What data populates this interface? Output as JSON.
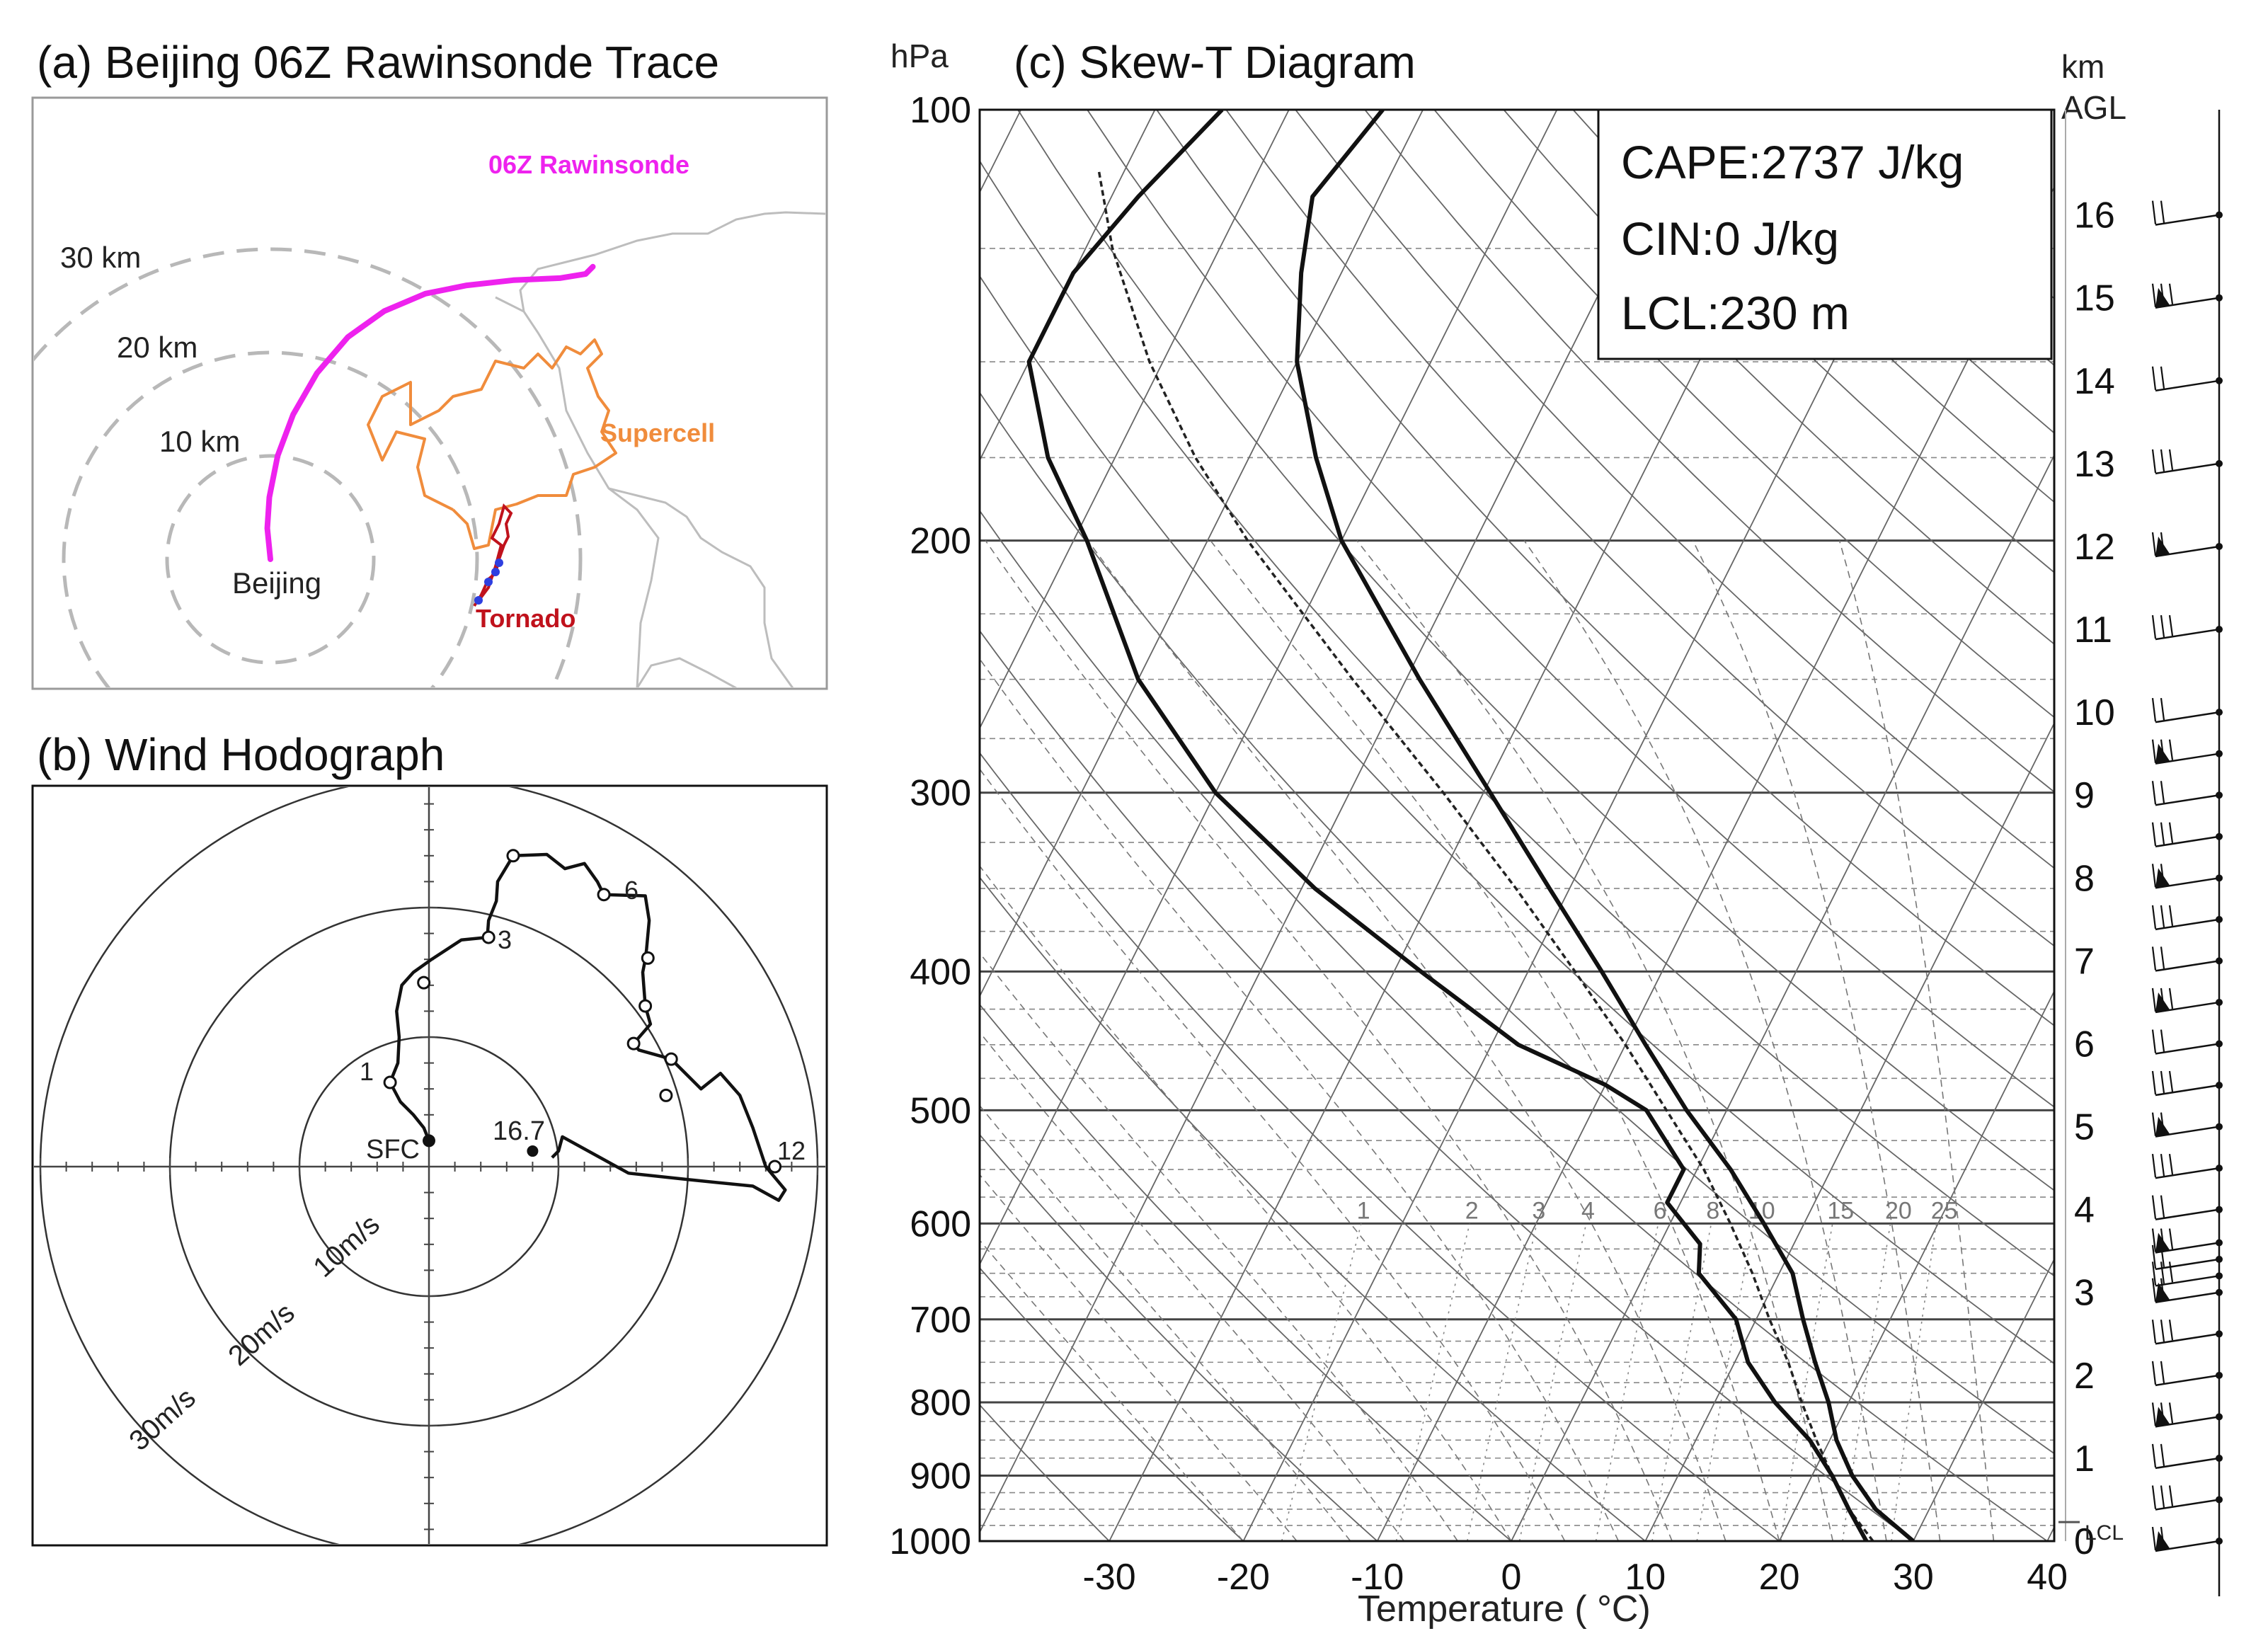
{
  "colors": {
    "rawinsonde": "#ee22ee",
    "supercell": "#f08c3c",
    "tornado": "#c0121c",
    "tornado_point": "#2e3fe0",
    "range_ring": "#b8b8b8",
    "map_border": "#bdbdbd",
    "ink": "#111111"
  },
  "chart_data": [
    {
      "type": "map",
      "panel": "a",
      "title": "(a) Beijing 06Z Rawinsonde Trace",
      "range_ring_labels": [
        "10 km",
        "20 km",
        "30 km"
      ],
      "range_rings_km": [
        10,
        20,
        30
      ],
      "station_label": "Beijing",
      "track_labels": {
        "rawinsonde": "06Z Rawinsonde",
        "supercell": "Supercell",
        "tornado": "Tornado"
      },
      "rawinsonde_track_km": [
        [
          0,
          0
        ],
        [
          -0.3,
          3
        ],
        [
          -0.1,
          6
        ],
        [
          0.7,
          10
        ],
        [
          2.2,
          14
        ],
        [
          4.5,
          18
        ],
        [
          7.5,
          21.5
        ],
        [
          11,
          24
        ],
        [
          15,
          25.7
        ],
        [
          19,
          26.5
        ],
        [
          23.5,
          27
        ],
        [
          28,
          27.2
        ],
        [
          30.5,
          27.6
        ],
        [
          31.2,
          28.3
        ]
      ]
    },
    {
      "type": "hodograph",
      "panel": "b",
      "title": "(b) Wind Hodograph",
      "ring_labels": [
        "10m/s",
        "20m/s",
        "30m/s"
      ],
      "rings_ms": [
        10,
        20,
        30
      ],
      "surface_label": "SFC",
      "end_label": "16.7",
      "height_labels_km": [
        "1",
        "3",
        "6",
        "12"
      ],
      "trace_uv_ms": [
        [
          0,
          2
        ],
        [
          -0.4,
          3
        ],
        [
          -1.2,
          4
        ],
        [
          -2.2,
          5
        ],
        [
          -3,
          6.5
        ],
        [
          -2.4,
          8
        ],
        [
          -2.3,
          10
        ],
        [
          -2.5,
          12
        ],
        [
          -2.1,
          14
        ],
        [
          -1.2,
          15
        ],
        [
          0.2,
          16
        ],
        [
          2.5,
          17.5
        ],
        [
          4.5,
          17.7
        ],
        [
          4.6,
          19
        ],
        [
          5.2,
          20.5
        ],
        [
          5.3,
          22
        ],
        [
          6.5,
          24
        ],
        [
          9.1,
          24.1
        ],
        [
          10.5,
          23
        ],
        [
          12,
          23.4
        ],
        [
          13,
          22
        ],
        [
          13.5,
          21
        ],
        [
          16.7,
          20.9
        ],
        [
          17,
          19
        ],
        [
          16.8,
          16.8
        ],
        [
          16.7,
          16
        ],
        [
          16.5,
          15
        ],
        [
          16.7,
          12.4
        ],
        [
          17.1,
          11
        ],
        [
          15.8,
          9.5
        ],
        [
          16.2,
          9
        ],
        [
          18.7,
          8.3
        ],
        [
          19.9,
          7.1
        ],
        [
          21,
          6
        ],
        [
          22.5,
          7.2
        ],
        [
          24,
          5.5
        ],
        [
          25,
          3
        ],
        [
          26,
          0
        ],
        [
          27.5,
          -1.8
        ],
        [
          27,
          -2.6
        ],
        [
          25,
          -1.5
        ],
        [
          20,
          -1
        ],
        [
          15.4,
          -0.5
        ],
        [
          10.3,
          2.3
        ],
        [
          10,
          1.2
        ],
        [
          9.5,
          0.7
        ]
      ],
      "height_marks_uv_ms": [
        [
          -3,
          6.5
        ],
        [
          -0.4,
          14.2
        ],
        [
          4.6,
          17.7
        ],
        [
          6.5,
          24
        ],
        [
          13.5,
          21
        ],
        [
          16.9,
          16.1
        ],
        [
          16.7,
          12.4
        ],
        [
          15.8,
          9.5
        ],
        [
          18.7,
          8.3
        ],
        [
          18.3,
          5.5
        ],
        [
          26.7,
          0
        ]
      ]
    },
    {
      "type": "skew-t",
      "panel": "c",
      "title": "(c) Skew-T Diagram",
      "pressure_axis_label": "hPa",
      "height_axis_label_1": "km",
      "height_axis_label_2": "AGL",
      "xlabel": "Temperature ( °C)",
      "stats": [
        "CAPE:2737 J/kg",
        "CIN:0 J/kg",
        "LCL:230 m"
      ],
      "lcl_label": "LCL",
      "pressure_ticks_hpa": [
        100,
        200,
        300,
        400,
        500,
        600,
        700,
        800,
        900,
        1000
      ],
      "temperature_ticks_c": [
        -30,
        -20,
        -10,
        0,
        10,
        20,
        30,
        40
      ],
      "height_ticks_km": [
        "16",
        "15",
        "14",
        "13",
        "12",
        "11",
        "10",
        "9",
        "8",
        "7",
        "6",
        "5",
        "4",
        "3",
        "2",
        "1",
        "0"
      ],
      "mixing_ratio_labels": [
        "1",
        "2",
        "3",
        "4",
        "6",
        "8",
        "10",
        "15",
        "20",
        "25"
      ],
      "temperature_profile": [
        [
          1000,
          30
        ],
        [
          950,
          26
        ],
        [
          900,
          23
        ],
        [
          850,
          20.5
        ],
        [
          800,
          18.5
        ],
        [
          750,
          16
        ],
        [
          700,
          13.5
        ],
        [
          650,
          11
        ],
        [
          600,
          7
        ],
        [
          550,
          2.5
        ],
        [
          500,
          -3
        ],
        [
          450,
          -8.5
        ],
        [
          400,
          -14.5
        ],
        [
          350,
          -21.5
        ],
        [
          300,
          -29.5
        ],
        [
          250,
          -39
        ],
        [
          200,
          -50
        ],
        [
          175,
          -55
        ],
        [
          150,
          -60
        ],
        [
          130,
          -63
        ],
        [
          115,
          -65
        ],
        [
          100,
          -63
        ]
      ],
      "dewpoint_profile": [
        [
          1000,
          26.5
        ],
        [
          950,
          24
        ],
        [
          900,
          21.5
        ],
        [
          850,
          18.5
        ],
        [
          800,
          14.5
        ],
        [
          750,
          11
        ],
        [
          700,
          8.5
        ],
        [
          650,
          4
        ],
        [
          620,
          3
        ],
        [
          580,
          -1
        ],
        [
          550,
          -1
        ],
        [
          500,
          -6
        ],
        [
          480,
          -10
        ],
        [
          450,
          -18
        ],
        [
          400,
          -28
        ],
        [
          350,
          -39
        ],
        [
          300,
          -50
        ],
        [
          250,
          -60
        ],
        [
          200,
          -69
        ],
        [
          175,
          -75
        ],
        [
          150,
          -80
        ],
        [
          130,
          -80
        ],
        [
          115,
          -78
        ],
        [
          100,
          -75
        ]
      ],
      "parcel_path": [
        [
          1000,
          27
        ],
        [
          950,
          24
        ],
        [
          900,
          21.5
        ],
        [
          850,
          19
        ],
        [
          800,
          16.5
        ],
        [
          750,
          14
        ],
        [
          700,
          11
        ],
        [
          650,
          8
        ],
        [
          600,
          4.5
        ],
        [
          550,
          0.5
        ],
        [
          500,
          -4.5
        ],
        [
          450,
          -10
        ],
        [
          400,
          -16.5
        ],
        [
          350,
          -24
        ],
        [
          300,
          -33
        ],
        [
          250,
          -44
        ],
        [
          200,
          -57
        ],
        [
          175,
          -64
        ],
        [
          150,
          -71
        ],
        [
          125,
          -78
        ],
        [
          110,
          -82
        ]
      ],
      "wind_barb_heights_km": [
        0,
        0.5,
        1,
        1.5,
        2,
        2.5,
        3,
        3.2,
        3.4,
        3.6,
        4,
        4.5,
        5,
        5.5,
        6,
        6.5,
        7,
        7.5,
        8,
        8.5,
        9,
        9.5,
        10,
        11,
        12,
        13,
        14,
        15,
        16
      ]
    }
  ]
}
